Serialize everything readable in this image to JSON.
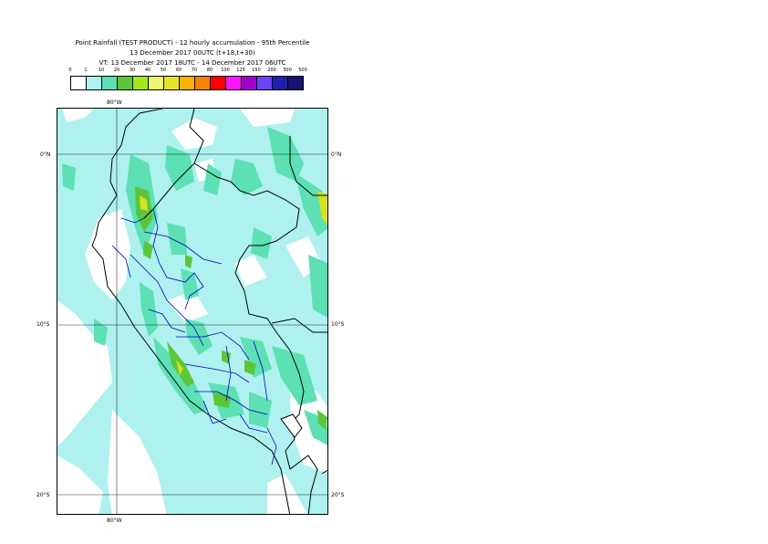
{
  "header": {
    "line1": "Point Rainfall (TEST PRODUCT) - 12 hourly accumulation - 95th Percentile",
    "line2": "13 December 2017 00UTC (t+18,t+30)",
    "line3": "VT: 13 December 2017 18UTC - 14 December 2017 06UTC"
  },
  "legend": {
    "thresholds": [
      "0",
      "1",
      "10",
      "20",
      "30",
      "40",
      "50",
      "60",
      "70",
      "80",
      "100",
      "125",
      "150",
      "200",
      "300",
      "500"
    ],
    "colors": [
      "#ffffff",
      "#aef1ef",
      "#5ce0b4",
      "#5cc63a",
      "#a4e81a",
      "#eef56e",
      "#e6e42a",
      "#f6b400",
      "#f58400",
      "#ff0000",
      "#ff14ff",
      "#a300cc",
      "#6c46f4",
      "#2020b0",
      "#14146e"
    ]
  },
  "map": {
    "lon_label_top": "80°W",
    "lon_label_bottom": "80°W",
    "lat_labels": [
      {
        "left": "0°N",
        "right": "0°N"
      },
      {
        "left": "10°S",
        "right": "10°S"
      },
      {
        "left": "20°S",
        "right": "20°S"
      }
    ],
    "palette": {
      "light": "#aef1ef",
      "medium": "#5ce0b4",
      "green": "#5cc63a",
      "yellow": "#d6e020",
      "coast": "#000000",
      "borders": "#0000cc",
      "grid": "#000000"
    }
  }
}
